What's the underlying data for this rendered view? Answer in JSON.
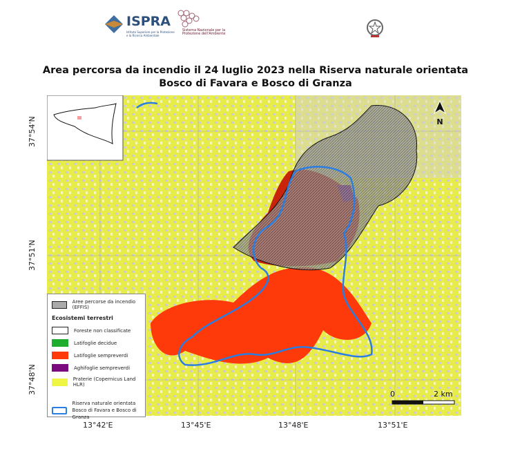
{
  "header": {
    "logos": [
      {
        "name": "ISPRA",
        "text": "ISPRA",
        "subtitle": "Istituto Superiore per la Protezione e la Ricerca Ambientale"
      },
      {
        "name": "SNPA",
        "text": "Sistema Nazionale per la Protezione dell'Ambiente"
      },
      {
        "name": "Repubblica Italiana emblem"
      }
    ]
  },
  "title": {
    "line1": "Area percorsa da incendio il 24 luglio 2023 nella Riserva naturale orientata",
    "line2": "Bosco di Favara e Bosco di Granza"
  },
  "axes": {
    "lat": [
      "37°54'N",
      "37°51'N",
      "37°48'N"
    ],
    "lon": [
      "13°42'E",
      "13°45'E",
      "13°48'E",
      "13°51'E"
    ]
  },
  "north_arrow": "N",
  "scale_bar": {
    "start": "0",
    "end": "2 km"
  },
  "legend": {
    "burned": {
      "label": "Aree percorse da incendio (EFFIS)"
    },
    "section_title": "Ecosistemi terrestri",
    "items": [
      {
        "label": "Foreste non classificate",
        "color": "#ffffff"
      },
      {
        "label": "Latifoglie decidue",
        "color": "#1fad2f"
      },
      {
        "label": "Latifoglie sempreverdi",
        "color": "#ff3a0a"
      },
      {
        "label": "Aghifoglie sempreverdi",
        "color": "#7b0a7e"
      },
      {
        "label": "Praterie (Copernicus Land HLR)",
        "color": "#eef542"
      }
    ],
    "reserve": {
      "line1": "Riserva naturale orientata",
      "line2": "Bosco di Favara e Bosco di Granza",
      "color": "#2a7de1"
    }
  }
}
